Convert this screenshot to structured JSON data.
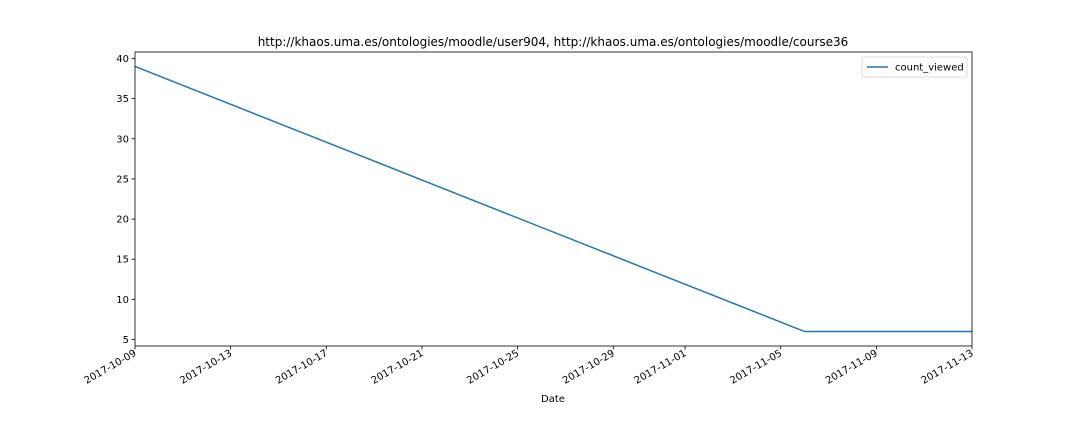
{
  "chart_data": {
    "type": "line",
    "title": "http://khaos.uma.es/ontologies/moodle/user904, http://khaos.uma.es/ontologies/moodle/course36",
    "xlabel": "Date",
    "ylabel": "",
    "x_type": "date",
    "xlim": [
      "2017-10-09",
      "2017-11-13"
    ],
    "ylim": [
      4.2,
      40.8
    ],
    "x_ticks": [
      "2017-10-09",
      "2017-10-13",
      "2017-10-17",
      "2017-10-21",
      "2017-10-25",
      "2017-10-29",
      "2017-11-01",
      "2017-11-05",
      "2017-11-09",
      "2017-11-13"
    ],
    "y_ticks": [
      5,
      10,
      15,
      20,
      25,
      30,
      35,
      40
    ],
    "grid": false,
    "legend_position": "top-right",
    "series": [
      {
        "name": "count_viewed",
        "color": "#1f77b4",
        "points": [
          {
            "x": "2017-10-09",
            "y": 39
          },
          {
            "x": "2017-11-06",
            "y": 6
          },
          {
            "x": "2017-11-13",
            "y": 6
          }
        ]
      }
    ]
  }
}
